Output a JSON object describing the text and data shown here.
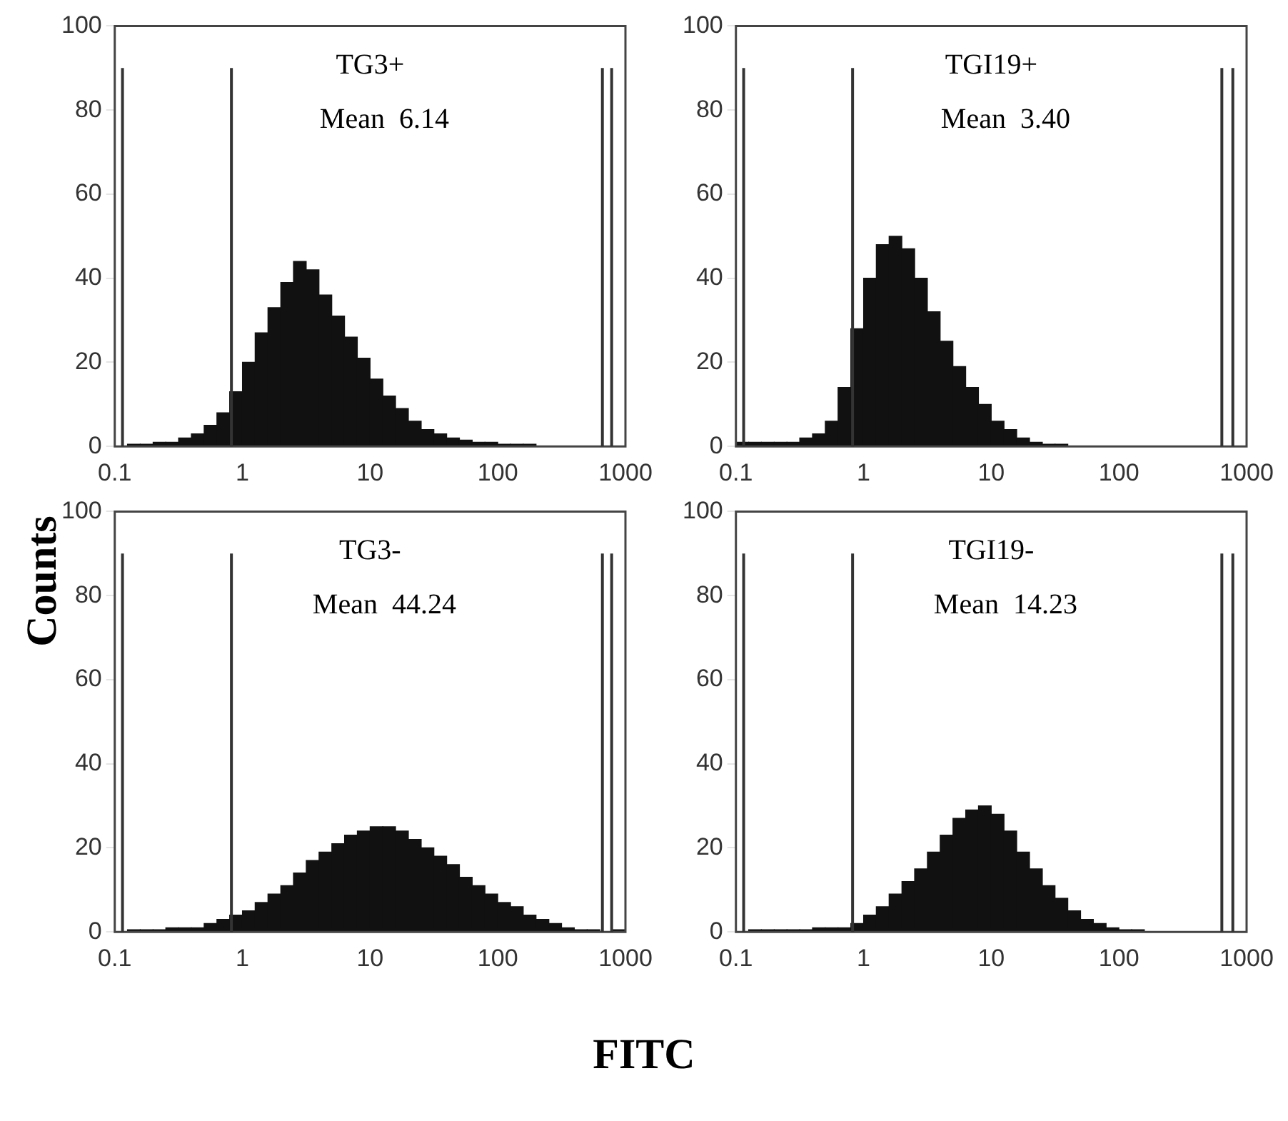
{
  "chart_data": [
    {
      "type": "histogram",
      "title": "TG3+",
      "annotations": [
        "Mean  6.14"
      ],
      "ylabel": "Counts",
      "color": "#111111",
      "grid": false,
      "legend": false,
      "bins": [
        0.1,
        0.126,
        0.158,
        0.2,
        0.251,
        0.316,
        0.398,
        0.501,
        0.631,
        0.794,
        1,
        1.26,
        1.58,
        2,
        2.51,
        3.16,
        3.98,
        5.01,
        6.31,
        7.94,
        10,
        12.6,
        15.8,
        20,
        25.1,
        31.6,
        39.8,
        50.1,
        63.1,
        79.4,
        100,
        126,
        158,
        200,
        251,
        316,
        398,
        501,
        631,
        794,
        1000
      ],
      "values": [
        null,
        0.5,
        0.5,
        1,
        1,
        2,
        3,
        5,
        8,
        13,
        20,
        27,
        33,
        39,
        44,
        42,
        36,
        31,
        26,
        21,
        16,
        12,
        9,
        6,
        4,
        3,
        2,
        1.5,
        1,
        1,
        0.5,
        0.5,
        0.5,
        0,
        0,
        0,
        0,
        0,
        0,
        0
      ],
      "log": "x",
      "xlim": [
        0.1,
        1000
      ],
      "xticks": [
        0.1,
        1,
        10,
        100,
        1000
      ],
      "ylim": [
        0,
        100
      ],
      "yticks": [
        0,
        20,
        40,
        60,
        80,
        100
      ],
      "ref_lines": [
        {
          "axis": "x",
          "value": 0.115,
          "color": "#333333"
        },
        {
          "axis": "x",
          "value": 0.82,
          "color": "#333333"
        },
        {
          "axis": "x",
          "value": 660,
          "color": "#333333"
        },
        {
          "axis": "x",
          "value": 780,
          "color": "#333333"
        }
      ]
    },
    {
      "type": "histogram",
      "title": "TGI19+",
      "annotations": [
        "Mean  3.40"
      ],
      "color": "#111111",
      "grid": false,
      "legend": false,
      "bins": [
        0.1,
        0.126,
        0.158,
        0.2,
        0.251,
        0.316,
        0.398,
        0.501,
        0.631,
        0.794,
        1,
        1.26,
        1.58,
        2,
        2.51,
        3.16,
        3.98,
        5.01,
        6.31,
        7.94,
        10,
        12.6,
        15.8,
        20,
        25.1,
        31.6,
        39.8,
        50.1,
        63.1,
        79.4,
        100,
        126,
        158,
        200,
        251,
        316,
        398,
        501,
        631,
        794,
        1000
      ],
      "values": [
        1,
        1,
        1,
        1,
        1,
        2,
        3,
        6,
        14,
        28,
        40,
        48,
        50,
        47,
        40,
        32,
        25,
        19,
        14,
        10,
        6,
        4,
        2,
        1,
        0.5,
        0.5,
        0,
        0,
        0,
        0,
        0,
        0,
        0,
        0,
        0,
        0,
        0,
        0,
        0,
        0
      ],
      "log": "x",
      "xlim": [
        0.1,
        1000
      ],
      "xticks": [
        0.1,
        1,
        10,
        100,
        1000
      ],
      "ylim": [
        0,
        100
      ],
      "yticks": [
        0,
        20,
        40,
        60,
        80,
        100
      ],
      "ref_lines": [
        {
          "axis": "x",
          "value": 0.115,
          "color": "#333333"
        },
        {
          "axis": "x",
          "value": 0.82,
          "color": "#333333"
        },
        {
          "axis": "x",
          "value": 640,
          "color": "#333333"
        },
        {
          "axis": "x",
          "value": 780,
          "color": "#333333"
        }
      ]
    },
    {
      "type": "histogram",
      "title": "TG3-",
      "annotations": [
        "Mean  44.24"
      ],
      "xlabel": "FITC",
      "color": "#111111",
      "grid": false,
      "legend": false,
      "bins": [
        0.1,
        0.126,
        0.158,
        0.2,
        0.251,
        0.316,
        0.398,
        0.501,
        0.631,
        0.794,
        1,
        1.26,
        1.58,
        2,
        2.51,
        3.16,
        3.98,
        5.01,
        6.31,
        7.94,
        10,
        12.6,
        15.8,
        20,
        25.1,
        31.6,
        39.8,
        50.1,
        63.1,
        79.4,
        100,
        126,
        158,
        200,
        251,
        316,
        398,
        501,
        631,
        794,
        1000
      ],
      "values": [
        null,
        0.5,
        0.5,
        0.5,
        1,
        1,
        1,
        2,
        3,
        4,
        5,
        7,
        9,
        11,
        14,
        17,
        19,
        21,
        23,
        24,
        25,
        25,
        24,
        22,
        20,
        18,
        16,
        13,
        11,
        9,
        7,
        6,
        4,
        3,
        2,
        1,
        0.5,
        0.5,
        null,
        0.5
      ],
      "log": "x",
      "xlim": [
        0.1,
        1000
      ],
      "xticks": [
        0.1,
        1,
        10,
        100,
        1000
      ],
      "ylim": [
        0,
        100
      ],
      "yticks": [
        0,
        20,
        40,
        60,
        80,
        100
      ],
      "ref_lines": [
        {
          "axis": "x",
          "value": 0.115,
          "color": "#333333"
        },
        {
          "axis": "x",
          "value": 0.82,
          "color": "#333333"
        },
        {
          "axis": "x",
          "value": 660,
          "color": "#333333"
        },
        {
          "axis": "x",
          "value": 780,
          "color": "#333333"
        }
      ]
    },
    {
      "type": "histogram",
      "title": "TGI19-",
      "annotations": [
        "Mean  14.23"
      ],
      "color": "#111111",
      "grid": false,
      "legend": false,
      "bins": [
        0.1,
        0.126,
        0.158,
        0.2,
        0.251,
        0.316,
        0.398,
        0.501,
        0.631,
        0.794,
        1,
        1.26,
        1.58,
        2,
        2.51,
        3.16,
        3.98,
        5.01,
        6.31,
        7.94,
        10,
        12.6,
        15.8,
        20,
        25.1,
        31.6,
        39.8,
        50.1,
        63.1,
        79.4,
        100,
        126,
        158,
        200,
        251,
        316,
        398,
        501,
        631,
        794,
        1000
      ],
      "values": [
        null,
        0.5,
        0.5,
        0.5,
        0.5,
        0.5,
        1,
        1,
        1,
        2,
        4,
        6,
        9,
        12,
        15,
        19,
        23,
        27,
        29,
        30,
        28,
        24,
        19,
        15,
        11,
        8,
        5,
        3,
        2,
        1,
        0.5,
        0.5,
        0,
        0,
        0,
        0,
        0,
        0,
        0,
        0
      ],
      "log": "x",
      "xlim": [
        0.1,
        1000
      ],
      "xticks": [
        0.1,
        1,
        10,
        100,
        1000
      ],
      "ylim": [
        0,
        100
      ],
      "yticks": [
        0,
        20,
        40,
        60,
        80,
        100
      ],
      "ref_lines": [
        {
          "axis": "x",
          "value": 0.115,
          "color": "#333333"
        },
        {
          "axis": "x",
          "value": 0.82,
          "color": "#333333"
        },
        {
          "axis": "x",
          "value": 640,
          "color": "#333333"
        },
        {
          "axis": "x",
          "value": 780,
          "color": "#333333"
        }
      ]
    }
  ]
}
